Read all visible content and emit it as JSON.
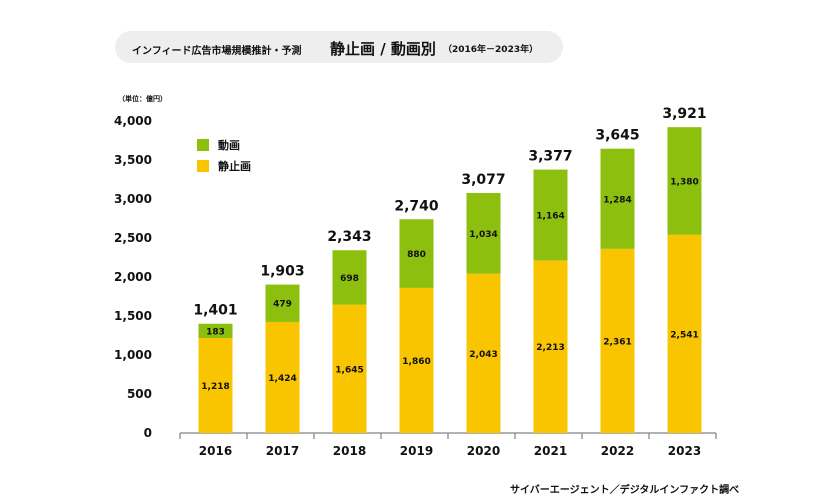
{
  "title": {
    "main": "インフィード広告市場規模推計・予測",
    "sub": "静止画 / 動画別",
    "range": "（2016年－2023年）"
  },
  "unit_label": "（単位：億円）",
  "source": "サイバーエージェント／デジタルインファクト調べ",
  "colors": {
    "video": "#8dbf0f",
    "still": "#f9c400",
    "axis": "#999999"
  },
  "chart_data": {
    "type": "bar",
    "stacked": true,
    "categories": [
      "2016",
      "2017",
      "2018",
      "2019",
      "2020",
      "2021",
      "2022",
      "2023"
    ],
    "series": [
      {
        "name": "静止画",
        "values": [
          1218,
          1424,
          1645,
          1860,
          2043,
          2213,
          2361,
          2541
        ]
      },
      {
        "name": "動画",
        "values": [
          183,
          479,
          698,
          880,
          1034,
          1164,
          1284,
          1380
        ]
      }
    ],
    "totals": [
      1401,
      1903,
      2343,
      2740,
      3077,
      3377,
      3645,
      3921
    ],
    "ylim": [
      0,
      4000
    ],
    "yticks": [
      0,
      500,
      1000,
      1500,
      2000,
      2500,
      3000,
      3500,
      4000
    ],
    "legend": {
      "position": "top-left",
      "entries": [
        "動画",
        "静止画"
      ]
    },
    "grid": false
  }
}
